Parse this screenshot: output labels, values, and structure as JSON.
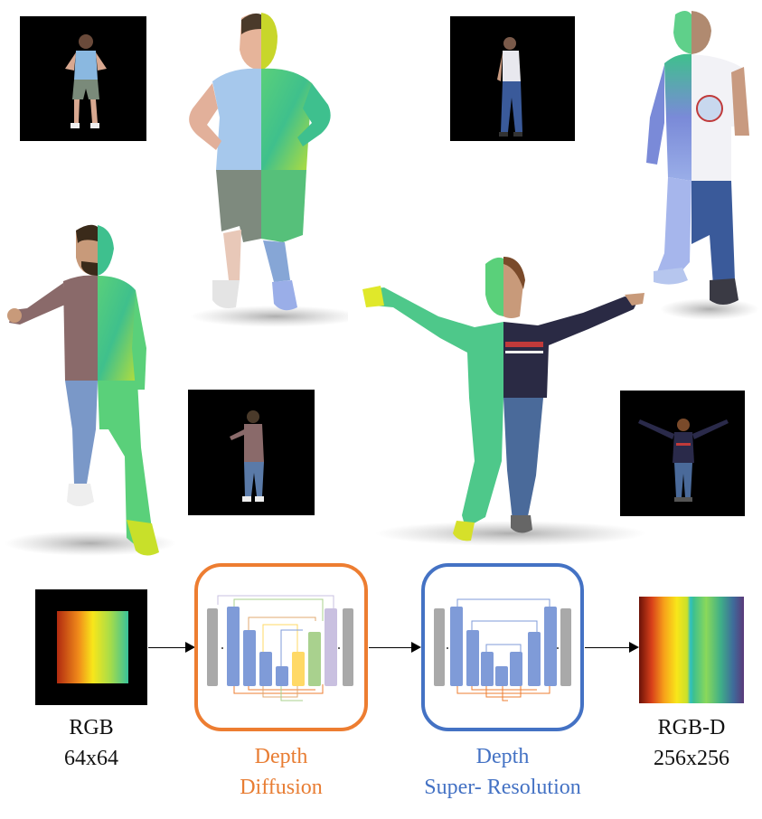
{
  "pipeline": {
    "input": {
      "name": "RGB",
      "size": "64x64"
    },
    "stage1": {
      "line1": "Depth",
      "line2": "Diffusion",
      "color": "#ed7d31"
    },
    "stage2": {
      "line1": "Depth",
      "line2": "Super- Resolution",
      "color": "#4472c4"
    },
    "output": {
      "name": "RGB-D",
      "size": "256x256"
    }
  },
  "colors": {
    "depth_gradient": [
      "#7a1a0a",
      "#e8501a",
      "#f7d21a",
      "#a8d83a",
      "#38c29a",
      "#2f9aa8",
      "#3a4a8a",
      "#5a3a7a"
    ],
    "unet_orange_stage": [
      "#a9a9a9",
      "#7f9bd8",
      "#ffd966",
      "#a9d18e",
      "#c9c0e0"
    ],
    "unet_blue_stage": [
      "#a9a9a9",
      "#7f9bd8"
    ]
  },
  "icons": [
    "person-rgb-thumbnail",
    "person-depth-half-render",
    "unet-diagram-icon",
    "arrow-right-icon"
  ]
}
